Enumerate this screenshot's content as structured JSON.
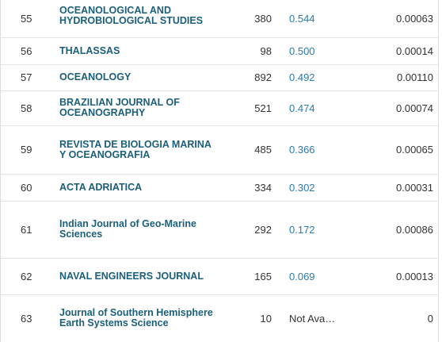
{
  "rows": [
    {
      "rank": "55",
      "title": "OCEANOLOGICAL AND HYDROBIOLOGICAL STUDIES",
      "cites": "380",
      "score": "0.544",
      "ef": "0.00063"
    },
    {
      "rank": "56",
      "title": "THALASSAS",
      "cites": "98",
      "score": "0.500",
      "ef": "0.00014"
    },
    {
      "rank": "57",
      "title": "OCEANOLOGY",
      "cites": "892",
      "score": "0.492",
      "ef": "0.00110"
    },
    {
      "rank": "58",
      "title": "BRAZILIAN JOURNAL OF OCEANOGRAPHY",
      "cites": "521",
      "score": "0.474",
      "ef": "0.00074"
    },
    {
      "rank": "59",
      "title": "REVISTA DE BIOLOGIA MARINA Y OCEANOGRAFIA",
      "cites": "485",
      "score": "0.366",
      "ef": "0.00065"
    },
    {
      "rank": "60",
      "title": "ACTA ADRIATICA",
      "cites": "334",
      "score": "0.302",
      "ef": "0.00031"
    },
    {
      "rank": "61",
      "title": "Indian Journal of Geo-Marine Sciences",
      "cites": "292",
      "score": "0.172",
      "ef": "0.00086"
    },
    {
      "rank": "62",
      "title": "NAVAL ENGINEERS JOURNAL",
      "cites": "165",
      "score": "0.069",
      "ef": "0.00013"
    },
    {
      "rank": "63",
      "title": "Journal of Southern Hemisphere Earth Systems Science",
      "cites": "10",
      "score": "Not Ava…",
      "ef": "0"
    }
  ],
  "colors": {
    "link": "#1b5f7a",
    "score": "#2a7ab0",
    "text": "#333333",
    "divider": "#e4e4e4"
  }
}
